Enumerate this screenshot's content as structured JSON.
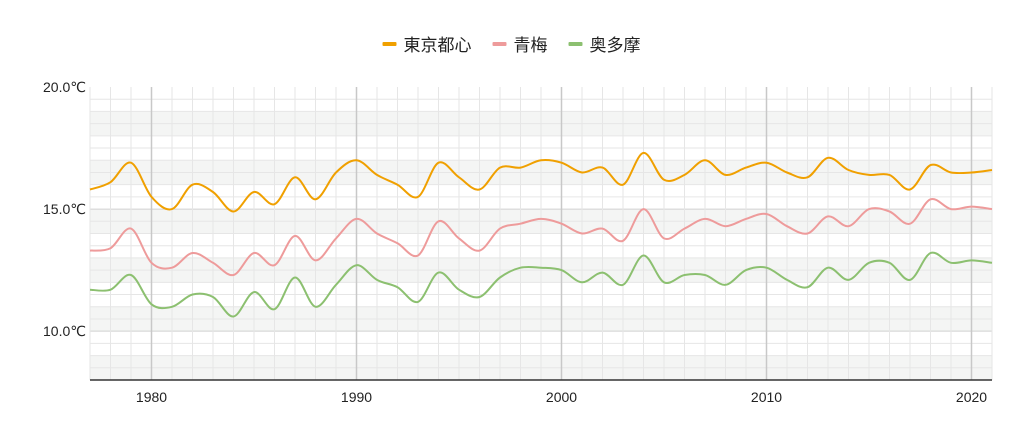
{
  "chart_data": {
    "type": "line",
    "title": "",
    "xlabel": "",
    "ylabel": "",
    "xlim": [
      1977,
      2021
    ],
    "ylim": [
      8,
      20
    ],
    "y_ticks": [
      {
        "value": 10,
        "label": "10.0℃"
      },
      {
        "value": 15,
        "label": "15.0℃"
      },
      {
        "value": 20,
        "label": "20.0℃"
      }
    ],
    "x_ticks": [
      {
        "value": 1980,
        "label": "1980"
      },
      {
        "value": 1990,
        "label": "1990"
      },
      {
        "value": 2000,
        "label": "2000"
      },
      {
        "value": 2010,
        "label": "2010"
      },
      {
        "value": 2020,
        "label": "2020"
      }
    ],
    "grid": true,
    "legend_position": "top-center",
    "x": [
      1977,
      1978,
      1979,
      1980,
      1981,
      1982,
      1983,
      1984,
      1985,
      1986,
      1987,
      1988,
      1989,
      1990,
      1991,
      1992,
      1993,
      1994,
      1995,
      1996,
      1997,
      1998,
      1999,
      2000,
      2001,
      2002,
      2003,
      2004,
      2005,
      2006,
      2007,
      2008,
      2009,
      2010,
      2011,
      2012,
      2013,
      2014,
      2015,
      2016,
      2017,
      2018,
      2019,
      2020,
      2021
    ],
    "series": [
      {
        "name": "東京都心",
        "color": "#f0a000",
        "values": [
          15.8,
          16.1,
          16.9,
          15.5,
          15.0,
          16.0,
          15.7,
          14.9,
          15.7,
          15.2,
          16.3,
          15.4,
          16.5,
          17.0,
          16.4,
          16.0,
          15.5,
          16.9,
          16.3,
          15.8,
          16.7,
          16.7,
          17.0,
          16.9,
          16.5,
          16.7,
          16.0,
          17.3,
          16.2,
          16.4,
          17.0,
          16.4,
          16.7,
          16.9,
          16.5,
          16.3,
          17.1,
          16.6,
          16.4,
          16.4,
          15.8,
          16.8,
          16.5,
          16.5,
          16.6
        ]
      },
      {
        "name": "青梅",
        "color": "#ee9b9b",
        "values": [
          13.3,
          13.4,
          14.2,
          12.8,
          12.6,
          13.2,
          12.8,
          12.3,
          13.2,
          12.7,
          13.9,
          12.9,
          13.8,
          14.6,
          14.0,
          13.6,
          13.1,
          14.5,
          13.8,
          13.3,
          14.2,
          14.4,
          14.6,
          14.4,
          14.0,
          14.2,
          13.7,
          15.0,
          13.8,
          14.2,
          14.6,
          14.3,
          14.6,
          14.8,
          14.3,
          14.0,
          14.7,
          14.3,
          15.0,
          14.9,
          14.4,
          15.4,
          15.0,
          15.1,
          15.0
        ]
      },
      {
        "name": "奥多摩",
        "color": "#8cc070",
        "values": [
          11.7,
          11.7,
          12.3,
          11.1,
          11.0,
          11.5,
          11.4,
          10.6,
          11.6,
          10.9,
          12.2,
          11.0,
          11.9,
          12.7,
          12.1,
          11.8,
          11.2,
          12.4,
          11.7,
          11.4,
          12.2,
          12.6,
          12.6,
          12.5,
          12.0,
          12.4,
          11.9,
          13.1,
          12.0,
          12.3,
          12.3,
          11.9,
          12.5,
          12.6,
          12.1,
          11.8,
          12.6,
          12.1,
          12.8,
          12.8,
          12.1,
          13.2,
          12.8,
          12.9,
          12.8
        ]
      }
    ]
  }
}
